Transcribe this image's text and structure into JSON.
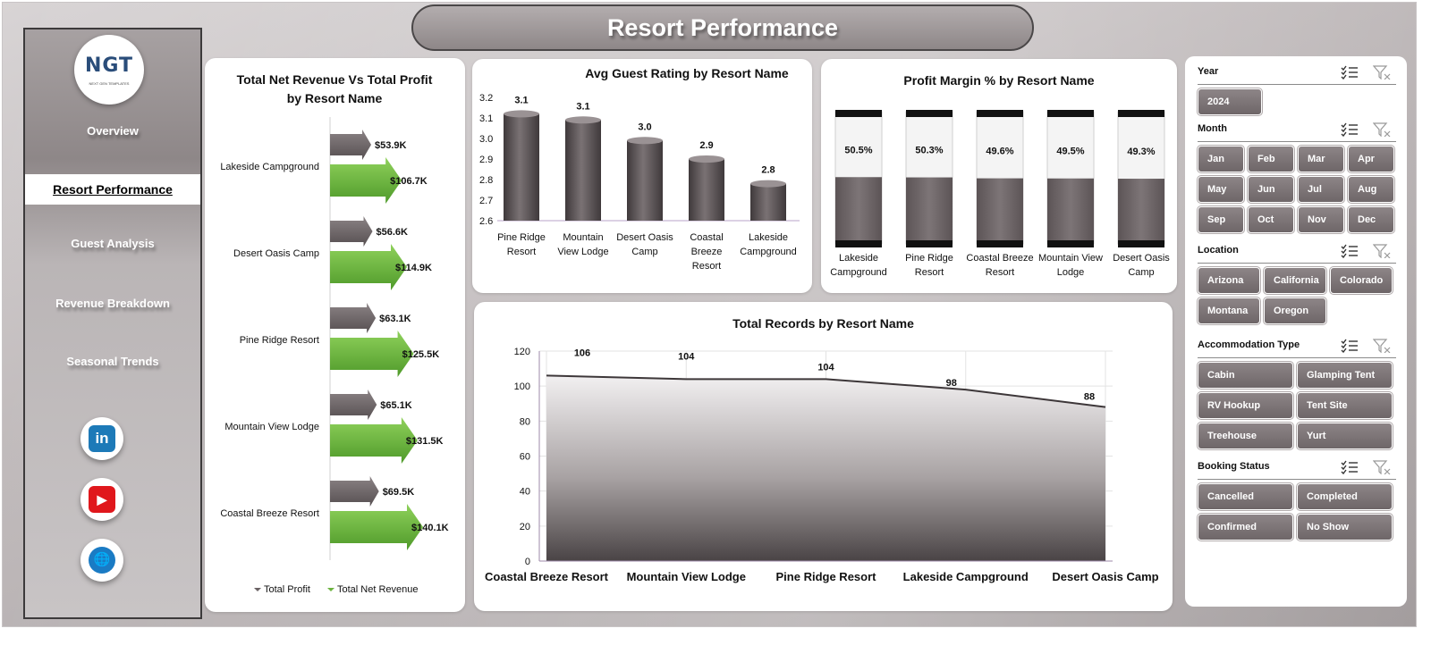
{
  "header": {
    "title": "Resort Performance"
  },
  "logo": {
    "mark": "NGT",
    "sub": "NEXT GEN TEMPLATES"
  },
  "nav": [
    {
      "label": "Overview",
      "active": false
    },
    {
      "label": "Resort Performance",
      "active": true
    },
    {
      "label": "Guest Analysis",
      "active": false
    },
    {
      "label": "Revenue Breakdown",
      "active": false
    },
    {
      "label": "Seasonal Trends",
      "active": false
    }
  ],
  "social": [
    {
      "name": "linkedin-icon",
      "glyph": "in",
      "color": "#1d7ab8"
    },
    {
      "name": "youtube-icon",
      "glyph": "▶",
      "color": "#e0171c"
    },
    {
      "name": "globe-icon",
      "glyph": "🌐",
      "color": "#1a7bc4"
    }
  ],
  "chart_data": [
    {
      "id": "revenue_profit",
      "type": "bar",
      "orientation": "horizontal",
      "title": "Total Net Revenue Vs Total Profit by Resort Name",
      "categories": [
        "Lakeside Campground",
        "Desert Oasis Camp",
        "Pine Ridge Resort",
        "Mountain View Lodge",
        "Coastal Breeze Resort"
      ],
      "series": [
        {
          "name": "Total Profit",
          "values": [
            53.9,
            56.6,
            63.1,
            65.1,
            69.5
          ],
          "labels": [
            "$53.9K",
            "$56.6K",
            "$63.1K",
            "$65.1K",
            "$69.5K"
          ],
          "color": "#6a6264"
        },
        {
          "name": "Total Net Revenue",
          "values": [
            106.7,
            114.9,
            125.5,
            131.5,
            140.1
          ],
          "labels": [
            "$106.7K",
            "$114.9K",
            "$125.5K",
            "$131.5K",
            "$140.1K"
          ],
          "color": "#6cb33f"
        }
      ],
      "legend": "bottom"
    },
    {
      "id": "guest_rating",
      "type": "bar",
      "title": "Avg Guest Rating by Resort Name",
      "categories": [
        "Pine Ridge Resort",
        "Mountain View Lodge",
        "Desert Oasis Camp",
        "Coastal Breeze Resort",
        "Lakeside Campground"
      ],
      "category_lines": [
        [
          "Pine Ridge",
          "Resort"
        ],
        [
          "Mountain",
          "View Lodge"
        ],
        [
          "Desert Oasis",
          "Camp"
        ],
        [
          "Coastal",
          "Breeze",
          "Resort"
        ],
        [
          "Lakeside",
          "Campground"
        ]
      ],
      "values": [
        3.12,
        3.09,
        2.99,
        2.9,
        2.78
      ],
      "labels": [
        "3.1",
        "3.1",
        "3.0",
        "2.9",
        "2.8"
      ],
      "ylim": [
        2.6,
        3.2
      ],
      "yticks": [
        "2.6",
        "2.7",
        "2.8",
        "2.9",
        "3.0",
        "3.1",
        "3.2"
      ],
      "color": "#5f5759"
    },
    {
      "id": "profit_margin",
      "type": "bar",
      "title": "Profit Margin % by Resort Name",
      "categories": [
        "Lakeside Campground",
        "Pine Ridge Resort",
        "Coastal Breeze Resort",
        "Mountain View Lodge",
        "Desert Oasis Camp"
      ],
      "category_lines": [
        [
          "Lakeside",
          "Campground"
        ],
        [
          "Pine Ridge",
          "Resort"
        ],
        [
          "Coastal Breeze",
          "Resort"
        ],
        [
          "Mountain View",
          "Lodge"
        ],
        [
          "Desert Oasis",
          "Camp"
        ]
      ],
      "values": [
        50.5,
        50.3,
        49.6,
        49.5,
        49.3
      ],
      "labels": [
        "50.5%",
        "50.3%",
        "49.6%",
        "49.5%",
        "49.3%"
      ],
      "ylim": [
        0,
        100
      ],
      "color": "#6a6264"
    },
    {
      "id": "total_records",
      "type": "area",
      "title": "Total Records by Resort Name",
      "categories": [
        "Coastal Breeze Resort",
        "Mountain View Lodge",
        "Pine Ridge Resort",
        "Lakeside Campground",
        "Desert Oasis Camp"
      ],
      "values": [
        106,
        104,
        104,
        98,
        88
      ],
      "labels": [
        "106",
        "104",
        "104",
        "98",
        "88"
      ],
      "ylim": [
        0,
        120
      ],
      "yticks": [
        "0",
        "20",
        "40",
        "60",
        "80",
        "100",
        "120"
      ],
      "grid": true
    }
  ],
  "slicers": [
    {
      "title": "Year",
      "items": [
        "2024"
      ]
    },
    {
      "title": "Month",
      "items": [
        "Jan",
        "Feb",
        "Mar",
        "Apr",
        "May",
        "Jun",
        "Jul",
        "Aug",
        "Sep",
        "Oct",
        "Nov",
        "Dec"
      ]
    },
    {
      "title": "Location",
      "items": [
        "Arizona",
        "California",
        "Colorado",
        "Montana",
        "Oregon"
      ]
    },
    {
      "title": "Accommodation Type",
      "items": [
        "Cabin",
        "Glamping Tent",
        "RV Hookup",
        "Tent Site",
        "Treehouse",
        "Yurt"
      ]
    },
    {
      "title": "Booking Status",
      "items": [
        "Cancelled",
        "Completed",
        "Confirmed",
        "No Show"
      ]
    }
  ]
}
